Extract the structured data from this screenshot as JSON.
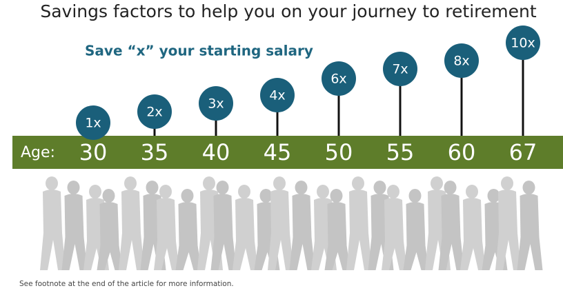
{
  "title": "Savings factors to help you on your journey to retirement",
  "subtitle": "Save “x” your starting salary",
  "age_label": "Age:",
  "milestones": [
    {
      "age": 30,
      "factor": "1x"
    },
    {
      "age": 35,
      "factor": "2x"
    },
    {
      "age": 40,
      "factor": "3x"
    },
    {
      "age": 45,
      "factor": "4x"
    },
    {
      "age": 50,
      "factor": "6x"
    },
    {
      "age": 55,
      "factor": "7x"
    },
    {
      "age": 60,
      "factor": "8x"
    },
    {
      "age": 67,
      "factor": "10x"
    }
  ],
  "footnote": "See footnote at the end of the article for more information."
}
